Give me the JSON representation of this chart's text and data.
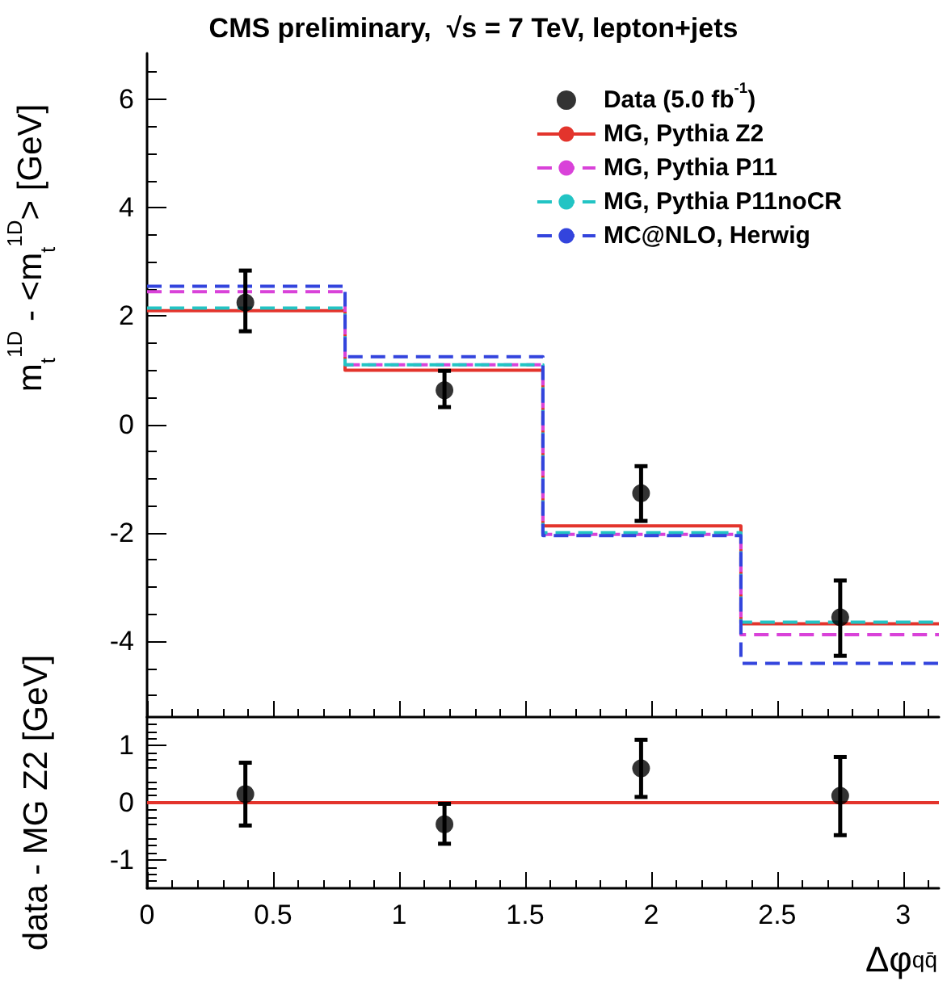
{
  "chart_data": [
    {
      "type": "step",
      "title": "CMS preliminary,  √s = 7 TeV, lepton+jets",
      "ylabel": "m$_{t}$$^{1D}$ - <m$_{t}$$^{1D}$> [GeV]",
      "xlim": [
        0,
        3.1416
      ],
      "xticks": [
        0,
        0.5,
        1,
        1.5,
        2,
        2.5,
        3
      ],
      "ylim": [
        -5.4,
        6.85
      ],
      "yticks": [
        -4,
        -2,
        0,
        2,
        4,
        6
      ],
      "tick_labels": "y",
      "grid": false,
      "legend": "top right",
      "series": [
        {
          "name": "Data (5.0 fb$^{-1}$)",
          "type": "scatter",
          "marker": "circle",
          "color": "#000000",
          "x": [
            0.39,
            1.18,
            1.96,
            2.75
          ],
          "values": [
            2.25,
            0.63,
            -1.27,
            -3.56
          ],
          "errors": [
            [
              1.72,
              2.84
            ],
            [
              0.32,
              0.99
            ],
            [
              -1.78,
              -0.77
            ],
            [
              -4.27,
              -2.88
            ]
          ]
        },
        {
          "name": "MG, Pythia Z2",
          "line_style": "solid",
          "color": "#e3342c",
          "x": [
            0,
            0.393,
            1.178,
            1.963,
            2.749,
            3.1416
          ],
          "values": [
            2.1,
            2.1,
            1.0,
            -1.87,
            -3.68,
            -3.68
          ]
        },
        {
          "name": "MG, Pythia P11",
          "line_style": "dashed",
          "color": "#d942d9",
          "x": [
            0,
            0.393,
            1.178,
            1.963,
            2.749,
            3.1416
          ],
          "values": [
            2.45,
            2.45,
            1.1,
            -2.03,
            -3.88,
            -3.88
          ]
        },
        {
          "name": "MG, Pythia P11noCR",
          "line_style": "dashed",
          "color": "#22c4c4",
          "x": [
            0,
            0.393,
            1.178,
            1.963,
            2.749,
            3.1416
          ],
          "values": [
            2.15,
            2.15,
            1.1,
            -2.0,
            -3.65,
            -3.65
          ]
        },
        {
          "name": "MC@NLO, Herwig",
          "line_style": "dashed",
          "color": "#3344dd",
          "x": [
            0,
            0.393,
            1.178,
            1.963,
            2.749,
            3.1416
          ],
          "values": [
            2.55,
            2.55,
            1.25,
            -2.05,
            -4.41,
            -4.41
          ]
        }
      ]
    },
    {
      "type": "step",
      "ylabel": "data - MG Z2 [GeV]",
      "xlabel": "Δφ$_{qq̄}$",
      "xlim": [
        0,
        3.1416
      ],
      "xticks": [
        0,
        0.5,
        1,
        1.5,
        2,
        2.5,
        3
      ],
      "ylim": [
        -1.5,
        1.5
      ],
      "yticks": [
        -1,
        0,
        1
      ],
      "grid": false,
      "series": [
        {
          "line_style": "solid",
          "color": "#e3342c",
          "x": [
            0,
            0.393,
            1.178,
            1.963,
            2.749,
            3.1416
          ],
          "values": [
            0,
            0,
            0,
            0,
            0,
            0
          ]
        },
        {
          "type": "scatter",
          "marker": "circle",
          "color": "#000000",
          "x": [
            0.39,
            1.18,
            1.96,
            2.75
          ],
          "values": [
            0.15,
            -0.38,
            0.6,
            0.12
          ],
          "errors": [
            [
              -0.4,
              0.7
            ],
            [
              -0.72,
              -0.02
            ],
            [
              0.1,
              1.1
            ],
            [
              -0.57,
              0.8
            ]
          ]
        }
      ]
    }
  ]
}
